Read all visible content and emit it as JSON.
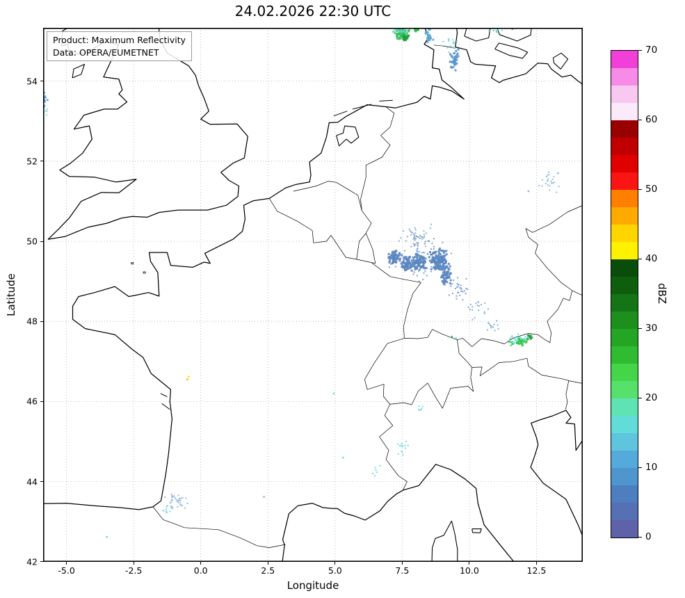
{
  "title": "24.02.2026 22:30 UTC",
  "annotation": {
    "line1": "Product: Maximum Reflectivity",
    "line2": "Data: OPERA/EUMETNET"
  },
  "axes": {
    "x_label": "Longitude",
    "y_label": "Latitude",
    "x_ticks": [
      {
        "label": "-5.0",
        "value": -5.0
      },
      {
        "label": "-2.5",
        "value": -2.5
      },
      {
        "label": "0.0",
        "value": 0.0
      },
      {
        "label": "2.5",
        "value": 2.5
      },
      {
        "label": "5.0",
        "value": 5.0
      },
      {
        "label": "7.5",
        "value": 7.5
      },
      {
        "label": "10.0",
        "value": 10.0
      },
      {
        "label": "12.5",
        "value": 12.5
      }
    ],
    "y_ticks": [
      {
        "label": "42",
        "value": 42
      },
      {
        "label": "44",
        "value": 44
      },
      {
        "label": "46",
        "value": 46
      },
      {
        "label": "48",
        "value": 48
      },
      {
        "label": "50",
        "value": 50
      },
      {
        "label": "52",
        "value": 52
      },
      {
        "label": "54",
        "value": 54
      }
    ]
  },
  "colorbar": {
    "label": "dBZ",
    "min": 0,
    "max": 70,
    "step_dbz": 2.5,
    "ticks": [
      {
        "label": "0",
        "value": 0
      },
      {
        "label": "10",
        "value": 10
      },
      {
        "label": "20",
        "value": 20
      },
      {
        "label": "30",
        "value": 30
      },
      {
        "label": "40",
        "value": 40
      },
      {
        "label": "50",
        "value": 50
      },
      {
        "label": "60",
        "value": 60
      },
      {
        "label": "70",
        "value": 70
      }
    ],
    "colors_bottom_to_top": [
      "#5f62a8",
      "#5570b4",
      "#4c7ec0",
      "#4f95ce",
      "#55aadc",
      "#5fc4dd",
      "#62dcd8",
      "#5fe3b4",
      "#57e06b",
      "#44d549",
      "#30bc30",
      "#24a524",
      "#1d8f1d",
      "#157415",
      "#0e5e0e",
      "#0a4d0a",
      "#fff200",
      "#ffd500",
      "#ffaa00",
      "#ff7f00",
      "#fb1414",
      "#e00000",
      "#c00000",
      "#990000",
      "#fce9f9",
      "#f9c8f0",
      "#f78ce8",
      "#f23fd7"
    ]
  },
  "chart_data": {
    "type": "heatmap",
    "subtype": "weather-radar-map",
    "title": "24.02.2026 22:30 UTC",
    "units": "dBZ",
    "extent": {
      "lon_min": -5.87,
      "lon_max": 14.22,
      "lat_min": 42.0,
      "lat_max": 55.33
    },
    "grid": "dotted",
    "echo_clusters": [
      {
        "lon": 7.5,
        "lat": 55.18,
        "dlon": 0.3,
        "dlat": 0.16,
        "color": "#38c161",
        "n": 70,
        "size": 3
      },
      {
        "lon": 7.62,
        "lat": 55.08,
        "dlon": 0.14,
        "dlat": 0.08,
        "color": "#1f9e3e",
        "n": 18,
        "size": 3
      },
      {
        "lon": 7.45,
        "lat": 55.26,
        "dlon": 0.4,
        "dlat": 0.1,
        "color": "#62d8cf",
        "n": 26,
        "size": 2
      },
      {
        "lon": 8.0,
        "lat": 55.3,
        "dlon": 0.12,
        "dlat": 0.06,
        "color": "#2eb84e",
        "n": 10,
        "size": 3
      },
      {
        "lon": 8.5,
        "lat": 55.12,
        "dlon": 0.18,
        "dlat": 0.22,
        "color": "#5fa8d8",
        "n": 30,
        "size": 3
      },
      {
        "lon": 9.45,
        "lat": 54.5,
        "dlon": 0.18,
        "dlat": 0.3,
        "color": "#5a96cf",
        "n": 40,
        "size": 3
      },
      {
        "lon": 9.3,
        "lat": 54.95,
        "dlon": 0.35,
        "dlat": 0.25,
        "color": "#6fd8d8",
        "n": 16,
        "size": 2
      },
      {
        "lon": 10.9,
        "lat": 55.25,
        "dlon": 0.55,
        "dlat": 0.1,
        "color": "#6fd8d8",
        "n": 12,
        "size": 2
      },
      {
        "lon": 7.25,
        "lat": 49.6,
        "dlon": 0.28,
        "dlat": 0.18,
        "color": "#5b87c0",
        "n": 70,
        "size": 3
      },
      {
        "lon": 7.7,
        "lat": 49.45,
        "dlon": 0.25,
        "dlat": 0.2,
        "color": "#5b87c0",
        "n": 70,
        "size": 3
      },
      {
        "lon": 8.15,
        "lat": 49.5,
        "dlon": 0.3,
        "dlat": 0.22,
        "color": "#5b87c0",
        "n": 90,
        "size": 3
      },
      {
        "lon": 8.85,
        "lat": 49.55,
        "dlon": 0.38,
        "dlat": 0.3,
        "color": "#5b87c0",
        "n": 130,
        "size": 3
      },
      {
        "lon": 9.15,
        "lat": 49.2,
        "dlon": 0.25,
        "dlat": 0.3,
        "color": "#5b87c0",
        "n": 60,
        "size": 3
      },
      {
        "lon": 8.3,
        "lat": 49.6,
        "dlon": 1.4,
        "dlat": 0.65,
        "color": "#7099c9",
        "n": 90,
        "size": 2
      },
      {
        "lon": 8.0,
        "lat": 50.15,
        "dlon": 0.7,
        "dlat": 0.35,
        "color": "#85a9d4",
        "n": 40,
        "size": 2
      },
      {
        "lon": 9.6,
        "lat": 48.85,
        "dlon": 0.45,
        "dlat": 0.35,
        "color": "#7099c9",
        "n": 28,
        "size": 2
      },
      {
        "lon": 10.3,
        "lat": 48.3,
        "dlon": 0.5,
        "dlat": 0.35,
        "color": "#7fa5d2",
        "n": 18,
        "size": 2
      },
      {
        "lon": 10.9,
        "lat": 47.95,
        "dlon": 0.35,
        "dlat": 0.25,
        "color": "#7fa5d2",
        "n": 12,
        "size": 2
      },
      {
        "lon": 11.85,
        "lat": 47.55,
        "dlon": 0.5,
        "dlat": 0.17,
        "color": "#62d8d0",
        "n": 45,
        "size": 2
      },
      {
        "lon": 11.9,
        "lat": 47.5,
        "dlon": 0.25,
        "dlat": 0.1,
        "color": "#33cc4d",
        "n": 22,
        "size": 3
      },
      {
        "lon": 12.25,
        "lat": 47.6,
        "dlon": 0.12,
        "dlat": 0.07,
        "color": "#1f9e3e",
        "n": 10,
        "size": 3
      },
      {
        "lon": 11.55,
        "lat": 47.45,
        "dlon": 0.12,
        "dlat": 0.08,
        "color": "#33cc4d",
        "n": 8,
        "size": 2
      },
      {
        "lon": 12.95,
        "lat": 51.5,
        "dlon": 0.55,
        "dlat": 0.3,
        "color": "#8fb4dc",
        "n": 22,
        "size": 2
      },
      {
        "lon": 7.5,
        "lat": 44.85,
        "dlon": 0.25,
        "dlat": 0.45,
        "color": "#6fd8d8",
        "n": 14,
        "size": 2
      },
      {
        "lon": 8.2,
        "lat": 45.85,
        "dlon": 0.15,
        "dlat": 0.15,
        "color": "#6fd8d8",
        "n": 6,
        "size": 2
      },
      {
        "lon": 6.6,
        "lat": 44.3,
        "dlon": 0.2,
        "dlat": 0.2,
        "color": "#6fd8d8",
        "n": 6,
        "size": 2
      },
      {
        "lon": -0.95,
        "lat": 43.5,
        "dlon": 0.55,
        "dlat": 0.25,
        "color": "#8fb4dc",
        "n": 35,
        "size": 2
      },
      {
        "lon": -1.3,
        "lat": 43.3,
        "dlon": 0.2,
        "dlat": 0.1,
        "color": "#6fd8d8",
        "n": 8,
        "size": 2
      },
      {
        "lon": -5.8,
        "lat": 53.55,
        "dlon": 0.12,
        "dlat": 0.22,
        "color": "#5fa8d8",
        "n": 12,
        "size": 3
      },
      {
        "lon": -5.78,
        "lat": 53.25,
        "dlon": 0.1,
        "dlat": 0.12,
        "color": "#6fd8d8",
        "n": 6,
        "size": 2
      }
    ],
    "specks": [
      {
        "lon": -0.45,
        "lat": 46.62,
        "color": "#ffd800"
      },
      {
        "lon": -0.5,
        "lat": 46.55,
        "color": "#ffb000"
      },
      {
        "lon": -3.5,
        "lat": 42.62,
        "color": "#6fd8d8"
      },
      {
        "lon": 4.95,
        "lat": 46.2,
        "color": "#6fd8d8"
      },
      {
        "lon": 5.3,
        "lat": 44.6,
        "color": "#6fd8d8"
      },
      {
        "lon": 12.2,
        "lat": 51.25,
        "color": "#8fb4dc"
      },
      {
        "lon": 13.3,
        "lat": 51.7,
        "color": "#8fb4dc"
      },
      {
        "lon": 2.35,
        "lat": 43.62,
        "color": "#8fb4dc"
      },
      {
        "lon": 9.35,
        "lat": 47.62,
        "color": "#33cc4d"
      },
      {
        "lon": 9.5,
        "lat": 47.58,
        "color": "#6fd8d8"
      },
      {
        "lon": 11.6,
        "lat": 55.3,
        "color": "#5fa8d8"
      }
    ]
  }
}
